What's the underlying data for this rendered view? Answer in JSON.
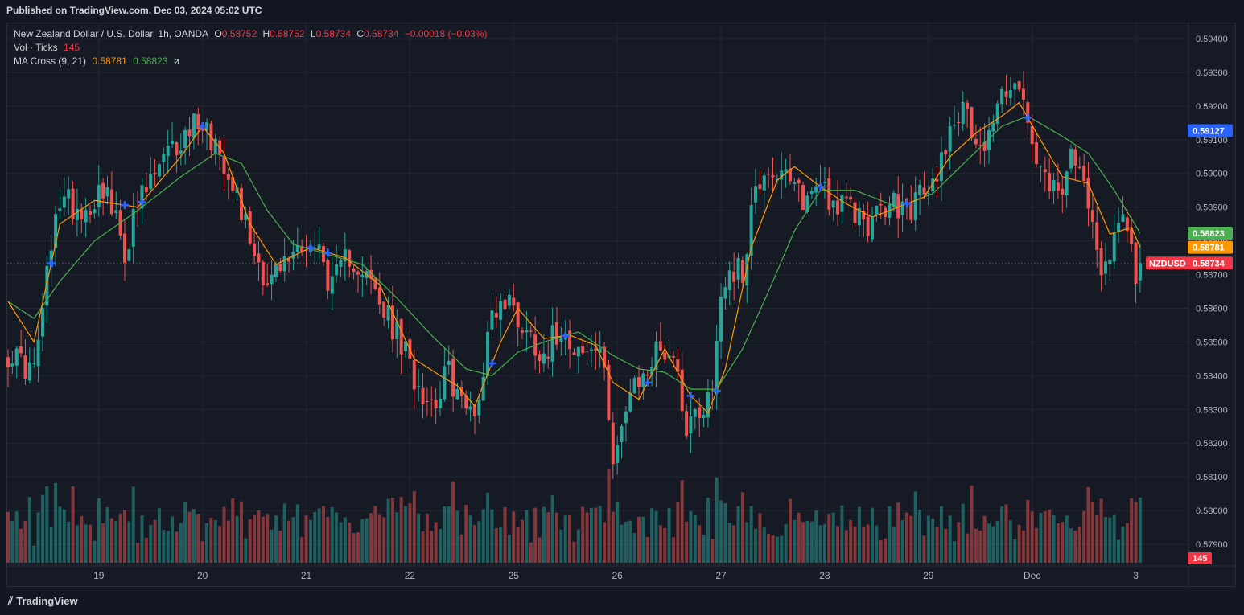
{
  "published": "Published on TradingView.com, Dec 03, 2024 05:02 UTC",
  "legend": {
    "symbol": "New Zealand Dollar / U.S. Dollar, 1h, OANDA",
    "o_label": "O",
    "o": "0.58752",
    "h_label": "H",
    "h": "0.58752",
    "l_label": "L",
    "l": "0.58734",
    "c_label": "C",
    "c": "0.58734",
    "change": "−0.00018 (−0.03%)",
    "vol_label": "Vol · Ticks",
    "vol_value": "145",
    "ma_label": "MA Cross (9, 21)",
    "ma_fast": "0.58781",
    "ma_slow": "0.58823",
    "ma_extra": "ø"
  },
  "footer": {
    "brand": "TradingView"
  },
  "colors": {
    "up": "#26a69a",
    "down": "#ef5350",
    "ma_fast": "#ff9800",
    "ma_slow": "#4caf50",
    "cross": "#2962ff",
    "grid": "#232733",
    "bg": "#161a25"
  },
  "chart_data": {
    "type": "candlestick",
    "symbol_tag": "NZDUSD",
    "y_ticks": [
      "0.59400",
      "0.59300",
      "0.59200",
      "0.59100",
      "0.59000",
      "0.58900",
      "0.58800",
      "0.58700",
      "0.58600",
      "0.58500",
      "0.58400",
      "0.58300",
      "0.58200",
      "0.58100",
      "0.58000",
      "0.57900"
    ],
    "ylim": [
      0.5785,
      0.5945
    ],
    "x_ticks": [
      {
        "label": "19",
        "t": 21
      },
      {
        "label": "20",
        "t": 45
      },
      {
        "label": "21",
        "t": 69
      },
      {
        "label": "22",
        "t": 93
      },
      {
        "label": "25",
        "t": 117
      },
      {
        "label": "26",
        "t": 141
      },
      {
        "label": "27",
        "t": 165
      },
      {
        "label": "28",
        "t": 189
      },
      {
        "label": "29",
        "t": 213
      },
      {
        "label": "Dec",
        "t": 237
      },
      {
        "label": "3",
        "t": 261
      }
    ],
    "n_bars": 263,
    "close_anchors": [
      [
        0,
        0.5847
      ],
      [
        6,
        0.5841
      ],
      [
        9,
        0.5869
      ],
      [
        12,
        0.5893
      ],
      [
        18,
        0.5889
      ],
      [
        22,
        0.5897
      ],
      [
        27,
        0.5877
      ],
      [
        30,
        0.589
      ],
      [
        35,
        0.5902
      ],
      [
        41,
        0.5911
      ],
      [
        44,
        0.5917
      ],
      [
        48,
        0.5909
      ],
      [
        52,
        0.5899
      ],
      [
        55,
        0.5885
      ],
      [
        58,
        0.5874
      ],
      [
        60,
        0.5868
      ],
      [
        64,
        0.5873
      ],
      [
        68,
        0.588
      ],
      [
        72,
        0.5877
      ],
      [
        75,
        0.5866
      ],
      [
        79,
        0.5876
      ],
      [
        82,
        0.5872
      ],
      [
        86,
        0.5861
      ],
      [
        90,
        0.5852
      ],
      [
        94,
        0.584
      ],
      [
        98,
        0.5832
      ],
      [
        102,
        0.5841
      ],
      [
        106,
        0.5829
      ],
      [
        109,
        0.5833
      ],
      [
        112,
        0.586
      ],
      [
        116,
        0.5862
      ],
      [
        120,
        0.5853
      ],
      [
        124,
        0.5847
      ],
      [
        128,
        0.5855
      ],
      [
        131,
        0.585
      ],
      [
        133,
        0.5846
      ],
      [
        137,
        0.5848
      ],
      [
        140,
        0.5818
      ],
      [
        144,
        0.5833
      ],
      [
        148,
        0.5842
      ],
      [
        151,
        0.5849
      ],
      [
        154,
        0.5846
      ],
      [
        157,
        0.5826
      ],
      [
        160,
        0.583
      ],
      [
        163,
        0.5836
      ],
      [
        165,
        0.5865
      ],
      [
        167,
        0.5872
      ],
      [
        170,
        0.587
      ],
      [
        172,
        0.589
      ],
      [
        175,
        0.5902
      ],
      [
        178,
        0.59
      ],
      [
        181,
        0.5896
      ],
      [
        185,
        0.5892
      ],
      [
        188,
        0.5899
      ],
      [
        191,
        0.5891
      ],
      [
        195,
        0.5889
      ],
      [
        200,
        0.5885
      ],
      [
        204,
        0.5891
      ],
      [
        208,
        0.5889
      ],
      [
        211,
        0.5893
      ],
      [
        214,
        0.5896
      ],
      [
        217,
        0.591
      ],
      [
        220,
        0.5919
      ],
      [
        223,
        0.5914
      ],
      [
        226,
        0.5908
      ],
      [
        229,
        0.592
      ],
      [
        231,
        0.5926
      ],
      [
        233,
        0.5928
      ],
      [
        235,
        0.5919
      ],
      [
        237,
        0.5908
      ],
      [
        240,
        0.5896
      ],
      [
        243,
        0.5893
      ],
      [
        246,
        0.5903
      ],
      [
        249,
        0.5898
      ],
      [
        251,
        0.589
      ],
      [
        253,
        0.5871
      ],
      [
        255,
        0.5878
      ],
      [
        258,
        0.5888
      ],
      [
        260,
        0.5883
      ],
      [
        261,
        0.5871
      ],
      [
        262,
        0.58734
      ]
    ],
    "ma_fast_anchors": [
      [
        0,
        0.5862
      ],
      [
        6,
        0.585
      ],
      [
        12,
        0.5885
      ],
      [
        20,
        0.5892
      ],
      [
        30,
        0.589
      ],
      [
        40,
        0.5905
      ],
      [
        45,
        0.5914
      ],
      [
        50,
        0.5906
      ],
      [
        56,
        0.5885
      ],
      [
        62,
        0.5873
      ],
      [
        70,
        0.5878
      ],
      [
        78,
        0.5875
      ],
      [
        86,
        0.5867
      ],
      [
        94,
        0.5845
      ],
      [
        100,
        0.584
      ],
      [
        104,
        0.5837
      ],
      [
        108,
        0.5831
      ],
      [
        114,
        0.585
      ],
      [
        118,
        0.586
      ],
      [
        124,
        0.5851
      ],
      [
        130,
        0.5852
      ],
      [
        136,
        0.5849
      ],
      [
        140,
        0.5838
      ],
      [
        146,
        0.5833
      ],
      [
        152,
        0.5848
      ],
      [
        158,
        0.5834
      ],
      [
        162,
        0.5829
      ],
      [
        166,
        0.5842
      ],
      [
        172,
        0.5878
      ],
      [
        178,
        0.5898
      ],
      [
        182,
        0.5902
      ],
      [
        188,
        0.5896
      ],
      [
        194,
        0.5891
      ],
      [
        200,
        0.5887
      ],
      [
        206,
        0.589
      ],
      [
        212,
        0.5893
      ],
      [
        218,
        0.5905
      ],
      [
        224,
        0.5912
      ],
      [
        230,
        0.5917
      ],
      [
        234,
        0.5921
      ],
      [
        238,
        0.5912
      ],
      [
        244,
        0.5899
      ],
      [
        250,
        0.5897
      ],
      [
        255,
        0.5882
      ],
      [
        260,
        0.5884
      ],
      [
        262,
        0.58781
      ]
    ],
    "ma_slow_anchors": [
      [
        0,
        0.5862
      ],
      [
        6,
        0.5857
      ],
      [
        12,
        0.5868
      ],
      [
        20,
        0.588
      ],
      [
        30,
        0.5889
      ],
      [
        40,
        0.5899
      ],
      [
        48,
        0.5906
      ],
      [
        54,
        0.5903
      ],
      [
        60,
        0.5889
      ],
      [
        66,
        0.5879
      ],
      [
        74,
        0.5876
      ],
      [
        82,
        0.5873
      ],
      [
        90,
        0.5863
      ],
      [
        98,
        0.5852
      ],
      [
        106,
        0.5842
      ],
      [
        112,
        0.584
      ],
      [
        118,
        0.5847
      ],
      [
        124,
        0.585
      ],
      [
        132,
        0.5853
      ],
      [
        140,
        0.5846
      ],
      [
        146,
        0.5842
      ],
      [
        152,
        0.5841
      ],
      [
        158,
        0.5836
      ],
      [
        164,
        0.5836
      ],
      [
        170,
        0.5848
      ],
      [
        176,
        0.5865
      ],
      [
        182,
        0.5883
      ],
      [
        188,
        0.5895
      ],
      [
        196,
        0.5895
      ],
      [
        206,
        0.589
      ],
      [
        214,
        0.5894
      ],
      [
        222,
        0.5904
      ],
      [
        230,
        0.5914
      ],
      [
        236,
        0.5917
      ],
      [
        244,
        0.5911
      ],
      [
        250,
        0.5906
      ],
      [
        256,
        0.5895
      ],
      [
        262,
        0.58823
      ]
    ],
    "cross_markers": [
      10,
      27,
      31,
      45,
      70,
      74,
      112,
      129,
      148,
      158,
      164,
      188,
      208,
      236
    ],
    "volume_max": 240,
    "price_labels": [
      {
        "text": "0.59127",
        "price": 0.59127,
        "color": "#2962ff"
      },
      {
        "text": "0.58823",
        "price": 0.58823,
        "color": "#4caf50"
      },
      {
        "text": "0.58781",
        "price": 0.58781,
        "color": "#ff9800"
      },
      {
        "text": "0.58734",
        "price": 0.58734,
        "color": "#f23645"
      }
    ],
    "volume_label": {
      "text": "145",
      "color": "#f23645"
    }
  }
}
